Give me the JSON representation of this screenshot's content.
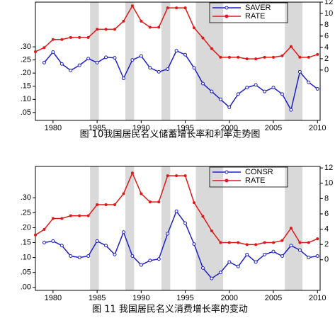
{
  "chart_data": [
    {
      "type": "line",
      "caption": "图 10我国居民名义储蓄增长率和利率走势图",
      "x": [
        1978,
        1979,
        1980,
        1981,
        1982,
        1983,
        1984,
        1985,
        1986,
        1987,
        1988,
        1989,
        1990,
        1991,
        1992,
        1993,
        1994,
        1995,
        1996,
        1997,
        1998,
        1999,
        2000,
        2001,
        2002,
        2003,
        2004,
        2005,
        2006,
        2007,
        2008,
        2009,
        2010
      ],
      "xlim": [
        1978,
        2010.3
      ],
      "xticks": [
        1980,
        1985,
        1990,
        1995,
        2000,
        2005,
        2010
      ],
      "ylim": [
        0.02,
        0.47
      ],
      "yticks": [
        {
          "value": 0.05,
          "label": ".05"
        },
        {
          "value": 0.1,
          "label": ".10"
        },
        {
          "value": 0.15,
          "label": ".15"
        },
        {
          "value": 0.2,
          "label": ".20"
        },
        {
          "value": 0.25,
          "label": ".25"
        },
        {
          "value": 0.3,
          "label": ".30"
        }
      ],
      "y2lim": [
        -8.9,
        12
      ],
      "y2ticks": [
        0,
        2,
        4,
        6,
        8,
        10,
        12
      ],
      "shaded": [
        [
          1984.2,
          1985.2
        ],
        [
          1988.2,
          1989.2
        ],
        [
          1992.3,
          1993.3
        ],
        [
          1996.2,
          1999.3
        ],
        [
          2006.3,
          2008.3
        ]
      ],
      "series": [
        {
          "name": "SAVER",
          "color": "#1f1fc8",
          "values": [
            null,
            0.24,
            0.28,
            0.235,
            0.21,
            0.23,
            0.255,
            0.24,
            0.26,
            0.258,
            0.18,
            0.25,
            0.265,
            0.22,
            0.205,
            0.215,
            0.285,
            0.27,
            0.22,
            0.16,
            0.13,
            0.1,
            0.07,
            0.12,
            0.145,
            0.155,
            0.13,
            0.145,
            0.12,
            0.06,
            0.205,
            0.165,
            0.14
          ]
        },
        {
          "name": "RATE",
          "color": "#e01818",
          "axis": "y2",
          "values": [
            3.24,
            3.96,
            5.4,
            5.4,
            5.76,
            5.76,
            5.76,
            7.2,
            7.2,
            7.2,
            8.64,
            11.34,
            8.64,
            7.56,
            7.56,
            10.98,
            10.98,
            10.98,
            7.47,
            5.67,
            3.78,
            2.25,
            2.25,
            2.25,
            1.98,
            1.98,
            2.25,
            2.25,
            2.52,
            4.14,
            2.25,
            2.25,
            2.75
          ]
        }
      ]
    },
    {
      "type": "line",
      "caption": "图 11  我国居民名义消费增长率的变动",
      "x": [
        1978,
        1979,
        1980,
        1981,
        1982,
        1983,
        1984,
        1985,
        1986,
        1987,
        1988,
        1989,
        1990,
        1991,
        1992,
        1993,
        1994,
        1995,
        1996,
        1997,
        1998,
        1999,
        2000,
        2001,
        2002,
        2003,
        2004,
        2005,
        2006,
        2007,
        2008,
        2009,
        2010
      ],
      "xlim": [
        1978,
        2010.3
      ],
      "xticks": [
        1980,
        1985,
        1990,
        1995,
        2000,
        2005,
        2010
      ],
      "ylim": [
        -0.01,
        0.405
      ],
      "yticks": [
        {
          "value": 0,
          "label": ".00"
        },
        {
          "value": 0.05,
          "label": ".05"
        },
        {
          "value": 0.1,
          "label": ".10"
        },
        {
          "value": 0.15,
          "label": ".15"
        },
        {
          "value": 0.2,
          "label": ".20"
        },
        {
          "value": 0.25,
          "label": ".25"
        },
        {
          "value": 0.3,
          "label": ".30"
        }
      ],
      "y2lim": [
        -4,
        12.2
      ],
      "y2ticks": [
        0,
        2,
        4,
        6,
        8,
        10,
        12
      ],
      "shaded": [
        [
          1984.2,
          1985.2
        ],
        [
          1988.2,
          1989.2
        ],
        [
          1992.3,
          1993.3
        ],
        [
          1996.2,
          1999.3
        ],
        [
          2006.3,
          2008.3
        ]
      ],
      "series": [
        {
          "name": "CONSR",
          "color": "#1f1fc8",
          "values": [
            null,
            0.15,
            0.155,
            0.14,
            0.105,
            0.1,
            0.105,
            0.155,
            0.14,
            0.11,
            0.185,
            0.105,
            0.075,
            0.09,
            0.095,
            0.18,
            0.255,
            0.215,
            0.145,
            0.065,
            0.03,
            0.05,
            0.085,
            0.07,
            0.11,
            0.085,
            0.11,
            0.12,
            0.105,
            0.14,
            0.125,
            0.1,
            0.105
          ]
        },
        {
          "name": "RATE",
          "color": "#e01818",
          "axis": "y2",
          "values": [
            3.24,
            3.96,
            5.4,
            5.4,
            5.76,
            5.76,
            5.76,
            7.2,
            7.2,
            7.2,
            8.64,
            11.34,
            8.64,
            7.56,
            7.56,
            10.98,
            10.98,
            10.98,
            7.47,
            5.67,
            3.78,
            2.25,
            2.25,
            2.25,
            1.98,
            1.98,
            2.25,
            2.25,
            2.52,
            4.14,
            2.25,
            2.25,
            2.75
          ]
        }
      ]
    }
  ]
}
